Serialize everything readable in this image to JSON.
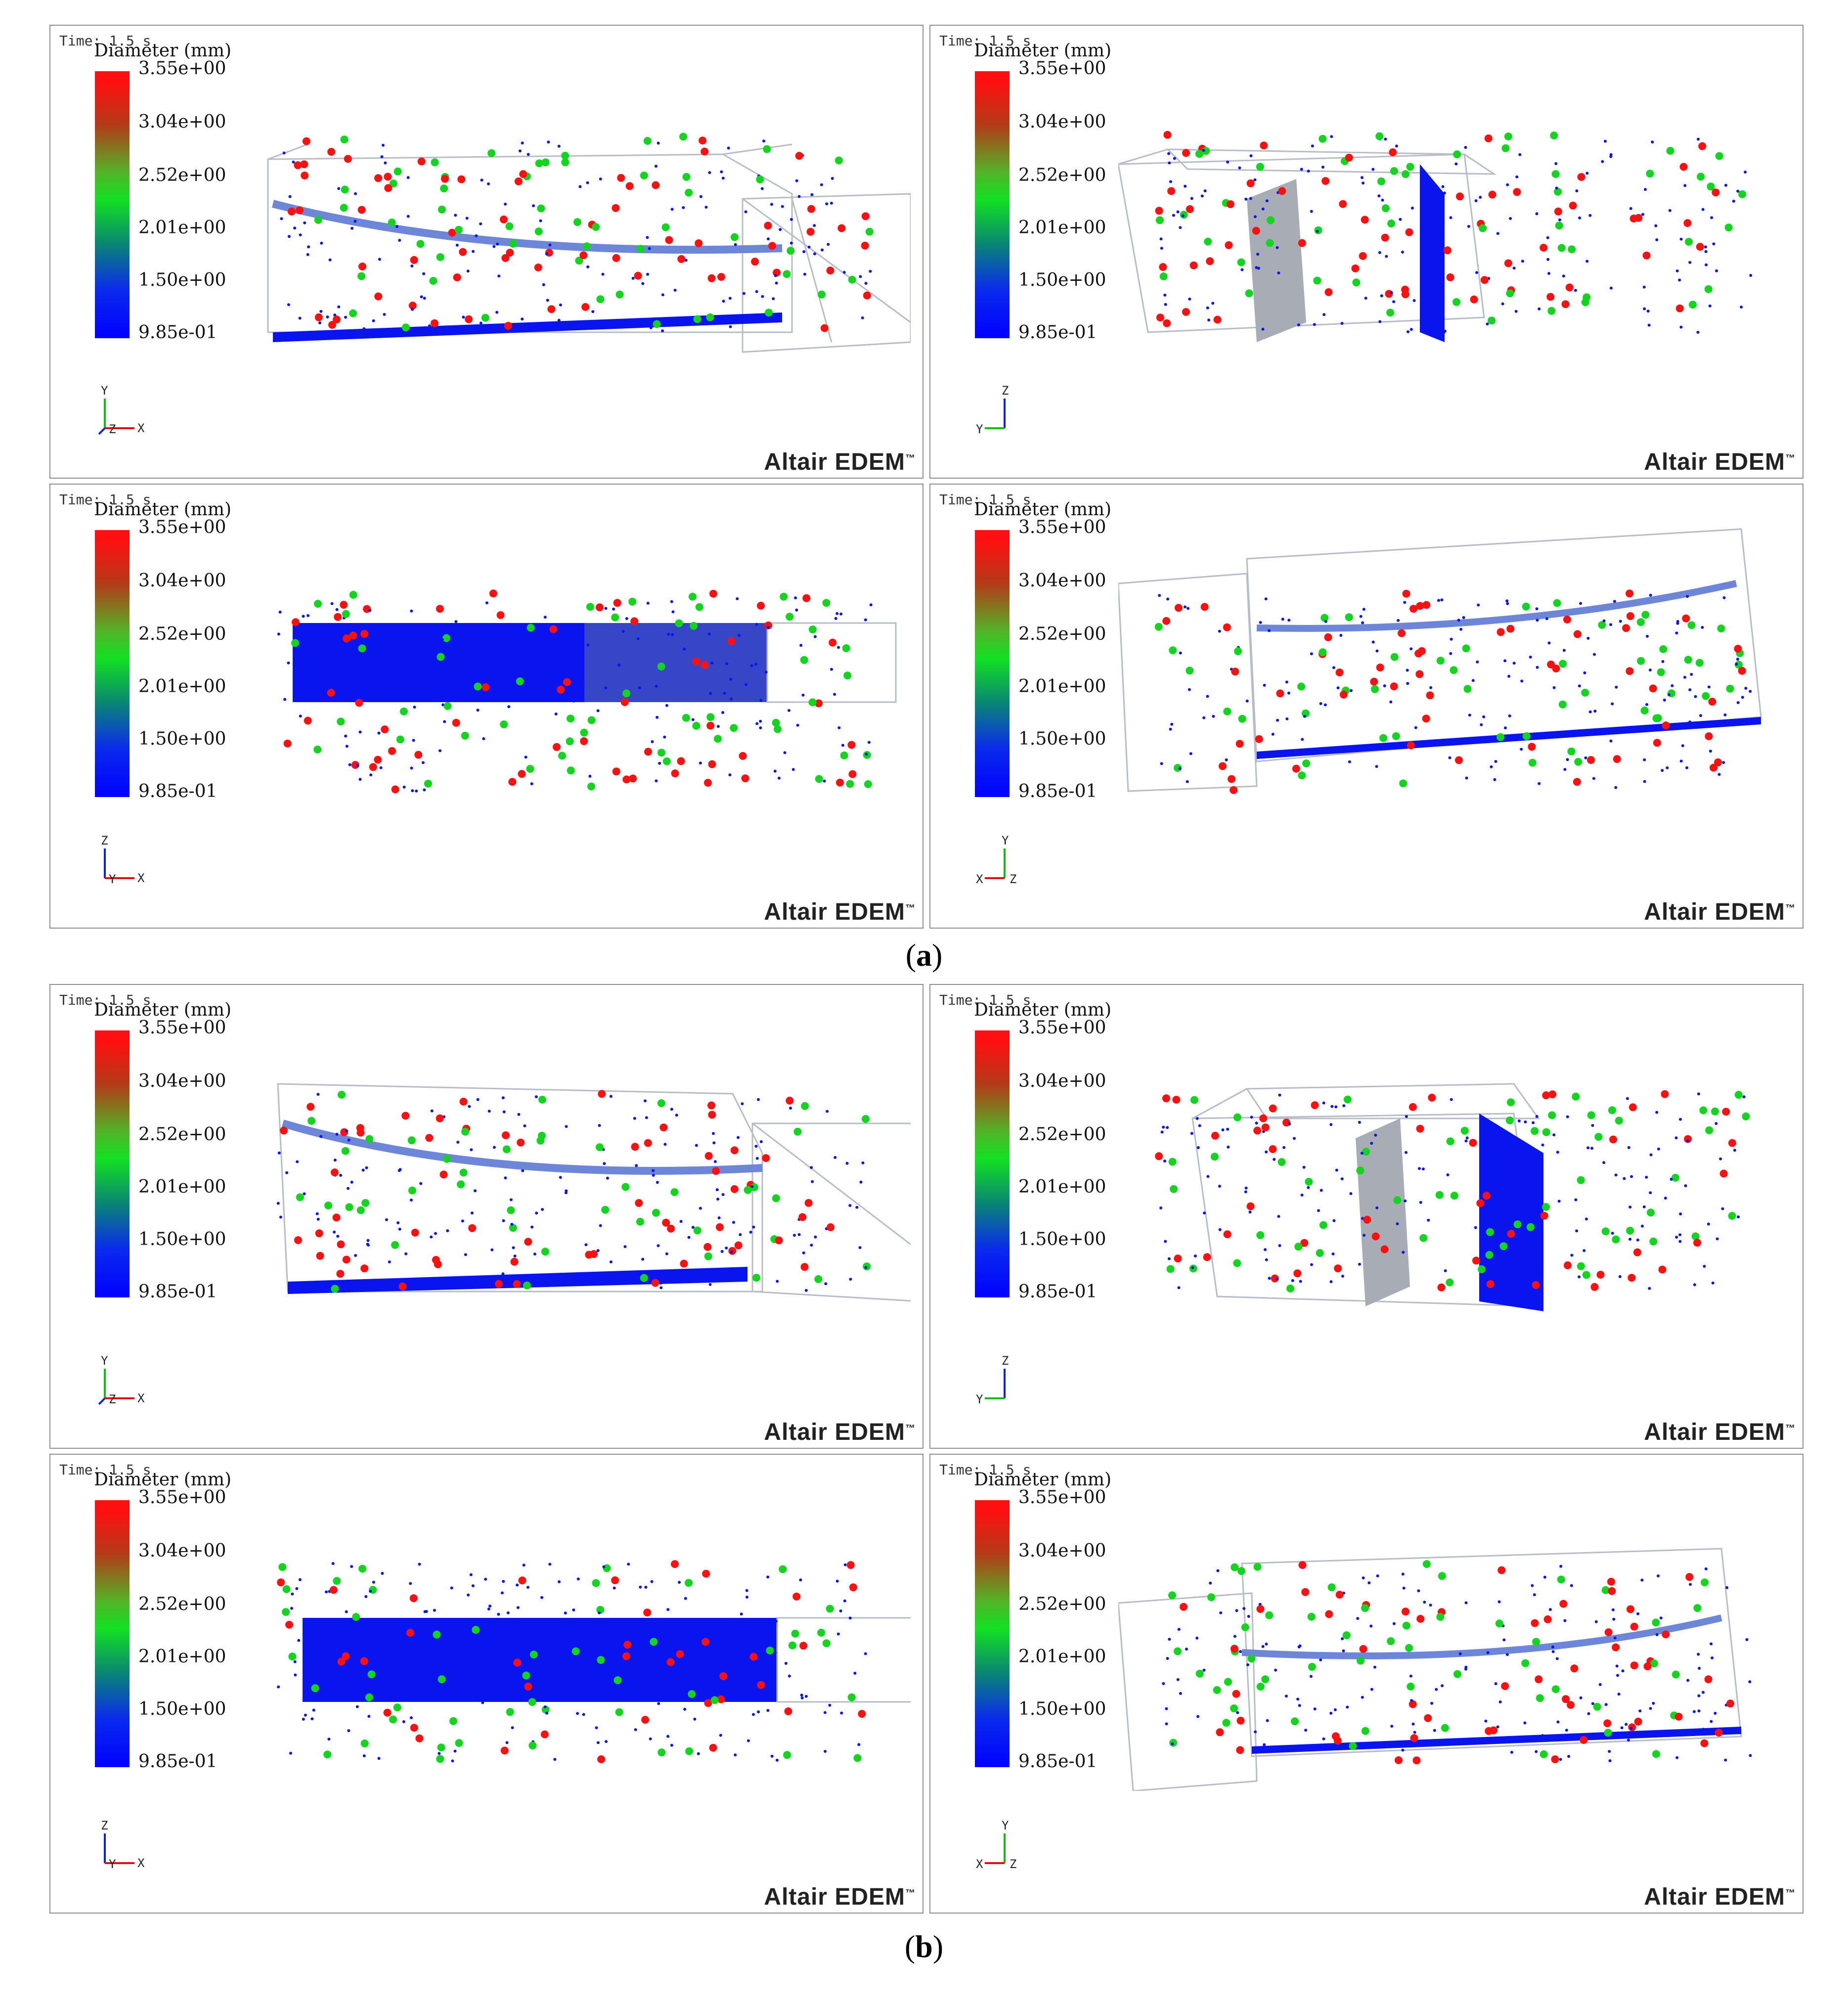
{
  "colors": {
    "red": "#ff1010",
    "green": "#12d61e",
    "blue": "#0a14ee",
    "geom": "#b8bcc6"
  },
  "figure": {
    "caption_a": "a",
    "caption_b": "b",
    "time_label": "Time: 1.5 s",
    "legend_title": "Diameter (mm)",
    "ticks": [
      "3.55e+00",
      "3.04e+00",
      "2.52e+00",
      "2.01e+00",
      "1.50e+00",
      "9.85e-01"
    ],
    "watermark": "Altair EDEM",
    "watermark_tm": "™",
    "panels_a": [
      {
        "view": "front",
        "axes": [
          "Y",
          "Z",
          "X"
        ]
      },
      {
        "view": "side",
        "axes": [
          "Z",
          "Y",
          "X"
        ]
      },
      {
        "view": "top",
        "axes": [
          "Z",
          "Y",
          "X"
        ]
      },
      {
        "view": "back",
        "axes": [
          "Y",
          "X",
          "Z"
        ]
      }
    ],
    "panels_b": [
      {
        "view": "front",
        "axes": [
          "Y",
          "Z",
          "X"
        ]
      },
      {
        "view": "side",
        "axes": [
          "Z",
          "Y",
          "X"
        ]
      },
      {
        "view": "top",
        "axes": [
          "Z",
          "Y",
          "X"
        ]
      },
      {
        "view": "back",
        "axes": [
          "Y",
          "X",
          "Z"
        ]
      }
    ]
  }
}
